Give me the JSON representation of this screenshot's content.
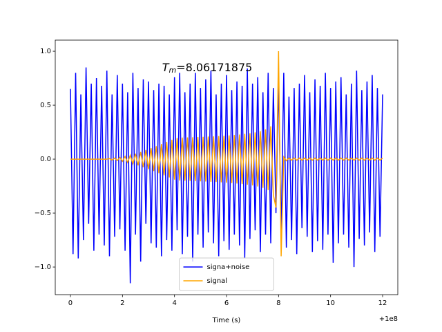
{
  "chart_data": {
    "type": "line",
    "xlabel": "Time (s)",
    "x_offset_label": "+1e8",
    "annotation": [
      "T",
      "m",
      "=8.06171875"
    ],
    "x": [
      100000000,
      100000000.1,
      100000000.2,
      100000000.3,
      100000000.4,
      100000000.5,
      100000000.6,
      100000000.7,
      100000000.8,
      100000000.9,
      100000001,
      100000001.1,
      100000001.2,
      100000001.3,
      100000001.4,
      100000001.5,
      100000001.6,
      100000001.7,
      100000001.8,
      100000001.9,
      100000002,
      100000002.1,
      100000002.2,
      100000002.3,
      100000002.4,
      100000002.5,
      100000002.6,
      100000002.7,
      100000002.8,
      100000002.9,
      100000003,
      100000003.1,
      100000003.2,
      100000003.3,
      100000003.4,
      100000003.5,
      100000003.6,
      100000003.7,
      100000003.8,
      100000003.9,
      100000004,
      100000004.1,
      100000004.2,
      100000004.3,
      100000004.4,
      100000004.5,
      100000004.6,
      100000004.7,
      100000004.8,
      100000004.9,
      100000005,
      100000005.1,
      100000005.2,
      100000005.3,
      100000005.4,
      100000005.5,
      100000005.6,
      100000005.7,
      100000005.8,
      100000005.9,
      100000006,
      100000006.1,
      100000006.2,
      100000006.3,
      100000006.4,
      100000006.5,
      100000006.6,
      100000006.7,
      100000006.8,
      100000006.9,
      100000007,
      100000007.1,
      100000007.2,
      100000007.3,
      100000007.4,
      100000007.5,
      100000007.6,
      100000007.7,
      100000007.8,
      100000007.9,
      100000008,
      100000008.1,
      100000008.2,
      100000008.3,
      100000008.4,
      100000008.5,
      100000008.6,
      100000008.7,
      100000008.8,
      100000008.9,
      100000009,
      100000009.1,
      100000009.2,
      100000009.3,
      100000009.4,
      100000009.5,
      100000009.6,
      100000009.7,
      100000009.8,
      100000009.9,
      100000010,
      100000010.1,
      100000010.2,
      100000010.3,
      100000010.4,
      100000010.5,
      100000010.6,
      100000010.7,
      100000010.8,
      100000010.9,
      100000011,
      100000011.1,
      100000011.2,
      100000011.3,
      100000011.4,
      100000011.5,
      100000011.6,
      100000011.7,
      100000011.8,
      100000011.9,
      100000012
    ],
    "series": [
      {
        "name": "signa+noise",
        "color": "blue",
        "values": [
          0.65,
          -0.88,
          0.8,
          -0.92,
          0.6,
          -0.75,
          0.85,
          -0.6,
          0.7,
          -0.85,
          0.75,
          -0.7,
          0.68,
          -0.8,
          0.82,
          -0.9,
          0.6,
          -0.72,
          0.78,
          -0.65,
          0.7,
          -0.85,
          0.62,
          -1.15,
          0.8,
          -0.7,
          0.66,
          -0.95,
          0.74,
          -0.6,
          0.72,
          -0.78,
          0.64,
          -0.82,
          0.7,
          -0.9,
          0.68,
          -0.75,
          0.6,
          -0.85,
          0.76,
          -0.66,
          0.8,
          -0.88,
          0.62,
          -0.72,
          0.7,
          -0.95,
          0.8,
          -0.7,
          0.66,
          -0.82,
          0.74,
          -0.68,
          0.82,
          -0.78,
          0.6,
          -0.9,
          0.7,
          -0.76,
          0.78,
          -0.84,
          0.64,
          -0.7,
          0.72,
          -0.8,
          0.68,
          -0.92,
          0.84,
          -0.74,
          0.7,
          -0.66,
          0.76,
          -0.86,
          0.62,
          -0.7,
          0.8,
          -0.78,
          0.66,
          -0.5,
          0.72,
          -0.7,
          0.8,
          -0.82,
          0.58,
          -0.75,
          0.66,
          -0.88,
          0.7,
          -0.64,
          0.78,
          -0.72,
          0.62,
          -0.86,
          0.74,
          -0.76,
          0.68,
          -0.84,
          0.8,
          -0.7,
          0.66,
          -0.96,
          0.72,
          -0.78,
          0.76,
          -0.7,
          0.6,
          -0.82,
          0.7,
          -1.0,
          0.82,
          -0.74,
          0.64,
          -0.8,
          0.72,
          -0.68,
          0.78,
          -0.86,
          0.66,
          -0.72,
          0.6
        ]
      },
      {
        "name": "signal",
        "color": "orange",
        "values": [
          0,
          0,
          0,
          0,
          0,
          0,
          0,
          0,
          0,
          0,
          0,
          0,
          0,
          0,
          0,
          0.005,
          -0.008,
          0.01,
          -0.013,
          0.016,
          -0.02,
          0.025,
          -0.03,
          0.036,
          -0.043,
          0.05,
          -0.058,
          0.066,
          -0.075,
          0.084,
          -0.093,
          0.102,
          -0.11,
          0.12,
          -0.13,
          0.14,
          -0.15,
          0.16,
          -0.17,
          0.18,
          -0.19,
          0.195,
          -0.198,
          0.2,
          -0.2,
          0.201,
          -0.202,
          0.203,
          -0.204,
          0.205,
          -0.206,
          0.207,
          -0.208,
          0.209,
          -0.21,
          0.211,
          -0.212,
          0.213,
          -0.215,
          0.216,
          -0.218,
          0.22,
          -0.222,
          0.224,
          -0.226,
          0.228,
          -0.231,
          0.234,
          -0.237,
          0.24,
          -0.244,
          0.248,
          -0.253,
          0.259,
          -0.266,
          0.275,
          -0.287,
          0.304,
          -0.33,
          -0.45,
          1.0,
          -0.9,
          0.02,
          -0.015,
          0.01,
          -0.01,
          0.01,
          -0.01,
          0.01,
          -0.01,
          0.01,
          -0.01,
          0.01,
          -0.01,
          0.01,
          -0.01,
          0.01,
          -0.01,
          0.01,
          -0.01,
          0.01,
          -0.01,
          0.01,
          -0.01,
          0.01,
          -0.01,
          0.01,
          -0.01,
          0.01,
          -0.01,
          0.01,
          -0.01,
          0.01,
          -0.01,
          0.01,
          -0.01,
          0.01,
          -0.01,
          0.01,
          -0.01,
          0.01
        ]
      }
    ],
    "xlim": [
      99999999.416,
      100000012.584
    ],
    "xticks": [
      {
        "value": 100000000,
        "label": "0"
      },
      {
        "value": 100000002,
        "label": "2"
      },
      {
        "value": 100000004,
        "label": "4"
      },
      {
        "value": 100000006,
        "label": "6"
      },
      {
        "value": 100000008,
        "label": "8"
      },
      {
        "value": 100000010,
        "label": "10"
      },
      {
        "value": 100000012,
        "label": "12"
      }
    ],
    "ylim": [
      -1.256,
      1.103
    ],
    "yticks": [
      {
        "value": -1,
        "label": "−1.0"
      },
      {
        "value": -0.5,
        "label": "−0.5"
      },
      {
        "value": 0,
        "label": "0.0"
      },
      {
        "value": 0.5,
        "label": "0.5"
      },
      {
        "value": 1,
        "label": "1.0"
      }
    ],
    "grid": false,
    "legend": "lower center"
  }
}
